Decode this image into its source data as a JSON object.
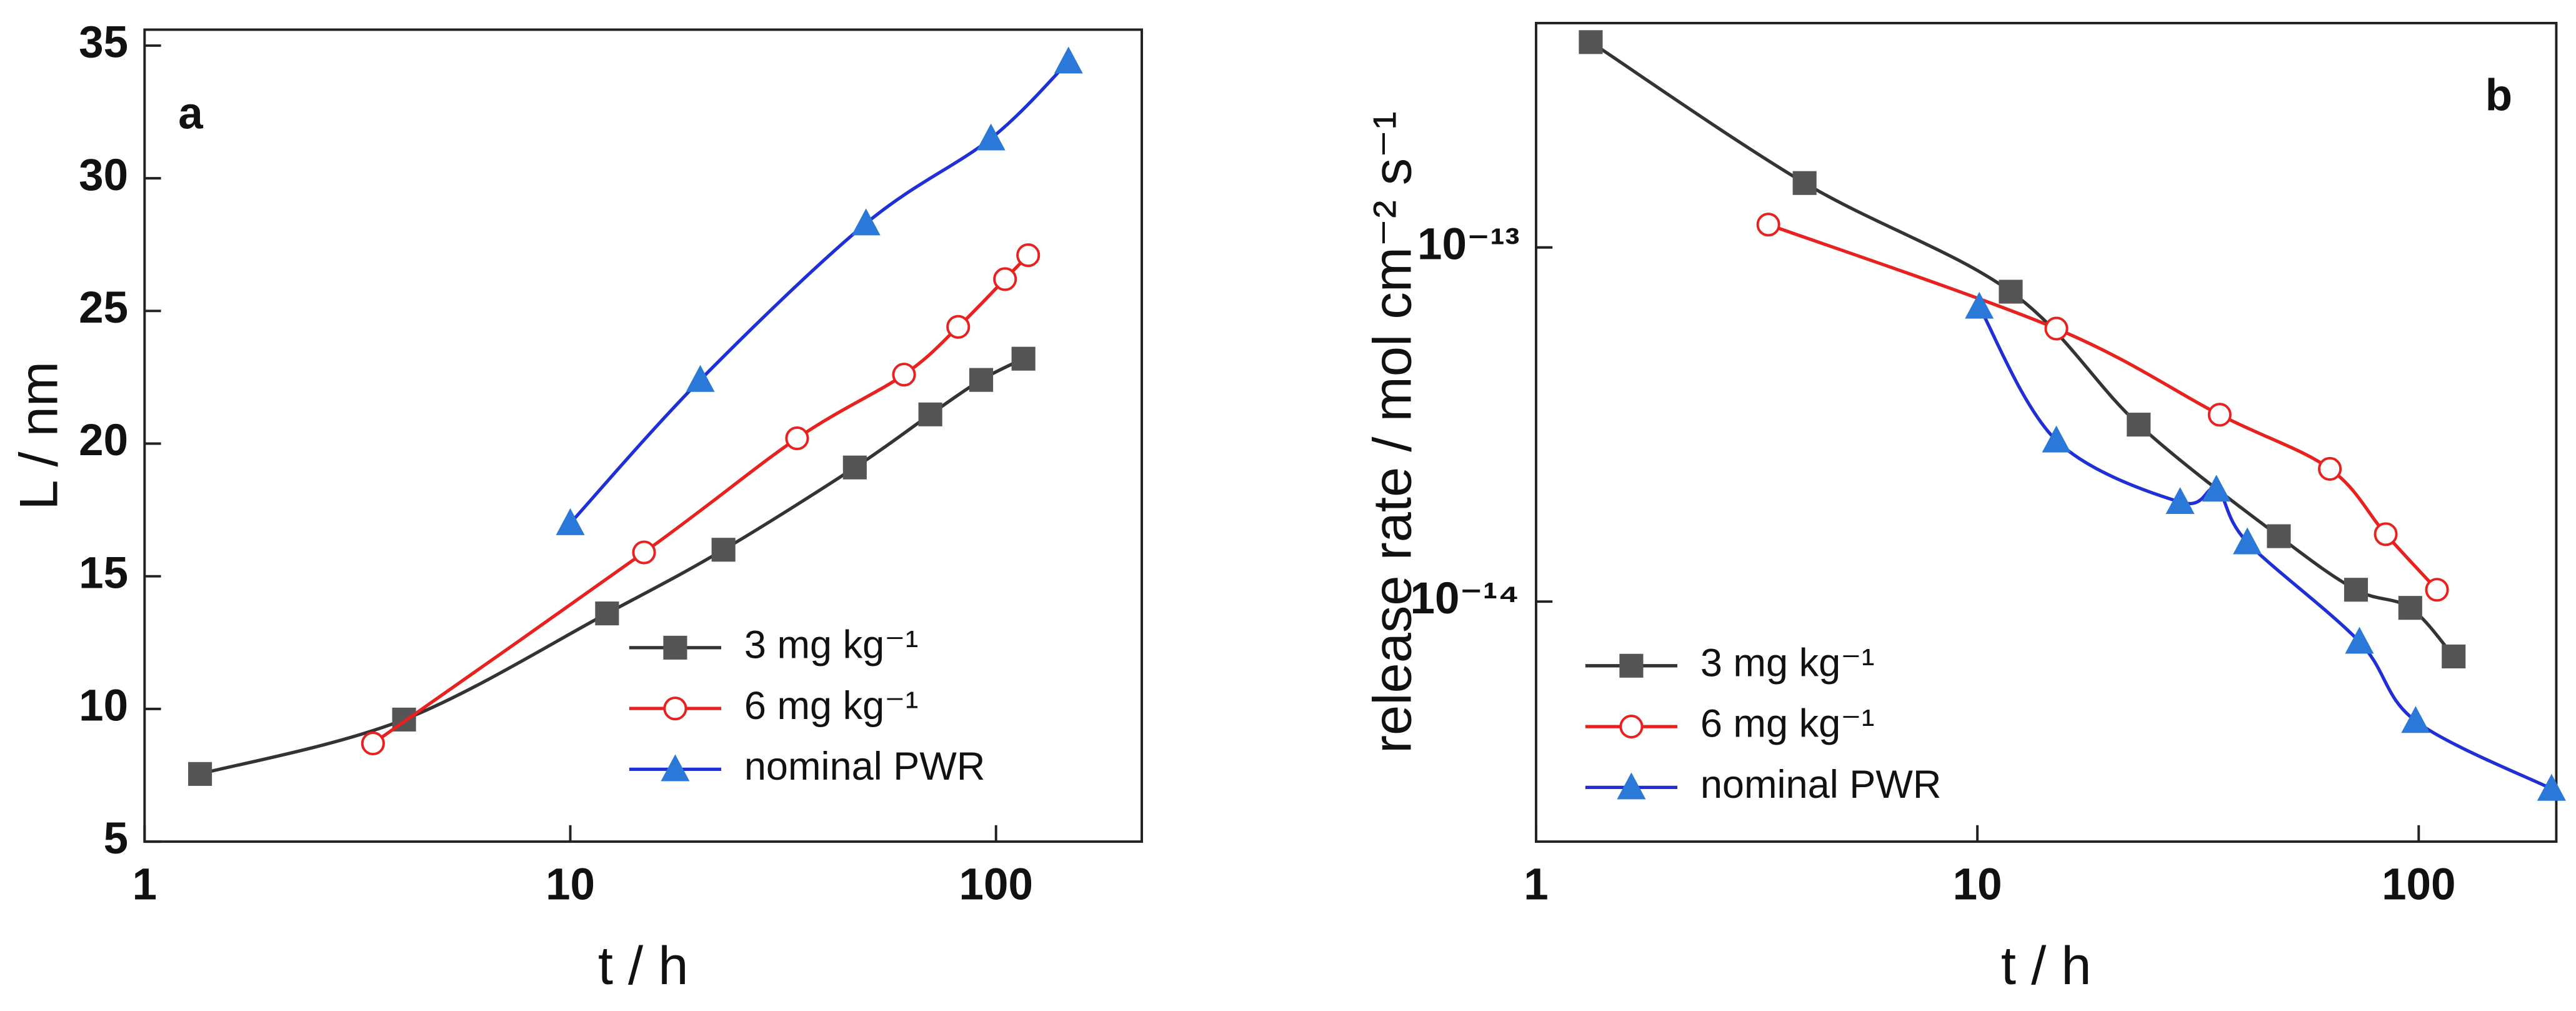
{
  "chart_data": [
    {
      "type": "line",
      "panel_label": "a",
      "xlabel": "t / h",
      "ylabel": "L / nm",
      "xscale": "log",
      "yscale": "linear",
      "xlim": [
        1,
        220
      ],
      "xticks": [
        1,
        10,
        100
      ],
      "ylim": [
        5,
        35.6
      ],
      "yticks": [
        5,
        10,
        15,
        20,
        25,
        30,
        35
      ],
      "legend": "lower right",
      "series": [
        {
          "name": "3 mg kg⁻¹",
          "color": "#333333",
          "marker": "square",
          "marker_fill": "#555555",
          "x": [
            1.35,
            4.07,
            12.2,
            22.9,
            46.6,
            70.1,
            92.3,
            116
          ],
          "values": [
            7.55,
            9.6,
            13.6,
            16.0,
            19.1,
            21.1,
            22.4,
            23.2
          ]
        },
        {
          "name": "6 mg kg⁻¹",
          "color": "#e8201e",
          "marker": "circle",
          "marker_fill": "#ffffff",
          "x": [
            3.44,
            14.9,
            34.1,
            60.8,
            81.5,
            105,
            119
          ],
          "values": [
            8.7,
            15.9,
            20.2,
            22.6,
            24.4,
            26.2,
            27.1
          ]
        },
        {
          "name": "nominal PWR",
          "color": "#1f2fd6",
          "marker": "triangle",
          "marker_fill": "#2a78d8",
          "x": [
            10,
            20.2,
            49.5,
            97.3,
            148
          ],
          "values": [
            17.0,
            22.4,
            28.3,
            31.5,
            34.4
          ]
        }
      ]
    },
    {
      "type": "line",
      "panel_label": "b",
      "xlabel": "t / h",
      "ylabel": "release rate / mol cm⁻² s⁻¹",
      "xscale": "log",
      "yscale": "log",
      "xlim": [
        1,
        205
      ],
      "xticks": [
        1,
        10,
        100
      ],
      "ylim": [
        2.1e-15,
        4.3e-13
      ],
      "yticks": [
        {
          "value": 1e-14,
          "label": "10⁻¹⁴"
        },
        {
          "value": 1e-13,
          "label": "10⁻¹³"
        }
      ],
      "legend": "lower left",
      "series": [
        {
          "name": "3 mg kg⁻¹",
          "color": "#333333",
          "marker": "square",
          "marker_fill": "#555555",
          "x": [
            1.33,
            4.06,
            11.9,
            23.2,
            48.2,
            72.1,
            95.7,
            120
          ],
          "values": [
            3.8e-13,
            1.52e-13,
            7.5e-14,
            3.16e-14,
            1.53e-14,
            1.08e-14,
            9.6e-15,
            7e-15
          ]
        },
        {
          "name": "6 mg kg⁻¹",
          "color": "#e8201e",
          "marker": "circle",
          "marker_fill": "#ffffff",
          "x": [
            3.36,
            15.1,
            35.4,
            62.9,
            84.2,
            110
          ],
          "values": [
            1.16e-13,
            5.9e-14,
            3.37e-14,
            2.37e-14,
            1.55e-14,
            1.08e-14
          ]
        },
        {
          "name": "nominal PWR",
          "color": "#1f2fd6",
          "marker": "triangle",
          "marker_fill": "#2a78d8",
          "x": [
            10.1,
            15.1,
            28.8,
            34.8,
            40.9,
            73.4,
            98.4,
            200
          ],
          "values": [
            6.8e-14,
            2.85e-14,
            1.91e-14,
            2.07e-14,
            1.47e-14,
            7.7e-15,
            4.6e-15,
            2.96e-15
          ]
        }
      ]
    }
  ]
}
